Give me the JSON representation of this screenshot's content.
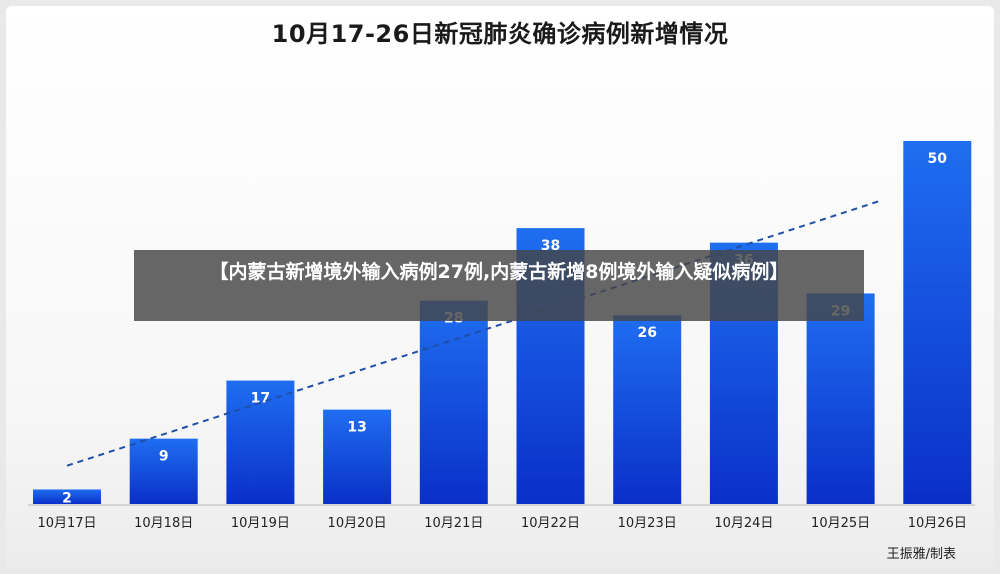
{
  "chart_data": {
    "type": "bar",
    "title": "10月17-26日新冠肺炎确诊病例新增情况",
    "categories": [
      "10月17日",
      "10月18日",
      "10月19日",
      "10月20日",
      "10月21日",
      "10月22日",
      "10月23日",
      "10月24日",
      "10月25日",
      "10月26日"
    ],
    "values": [
      2,
      9,
      17,
      13,
      28,
      38,
      26,
      36,
      29,
      50
    ],
    "trendline": {
      "style": "dashed",
      "color": "#1f4fa8"
    },
    "bar_color_top": "#1f6ef0",
    "bar_color_bottom": "#0a2fc9",
    "ylim": [
      0,
      50
    ],
    "grid": false,
    "legend": "none"
  },
  "credit": "王振雅/制表",
  "overlay": {
    "text": "【内蒙古新增境外输入病例27例,内蒙古新增8例境外输入疑似病例】"
  }
}
